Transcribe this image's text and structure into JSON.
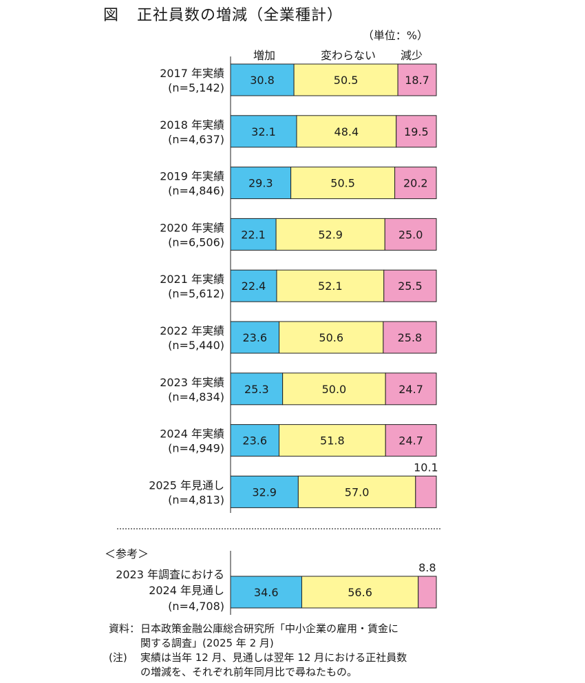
{
  "title": {
    "fig_label": "図",
    "text": "正社員数の増減（全業種計）"
  },
  "unit": "（単位：%）",
  "chart_data": {
    "type": "bar",
    "orientation": "horizontal",
    "stacked": true,
    "percent_stacked": true,
    "legend": [
      "増加",
      "変わらない",
      "減少"
    ],
    "legend_placement": "top",
    "colors": {
      "増加": "#4fc3ee",
      "変わらない": "#fff799",
      "減少": "#f29fc5"
    },
    "categories": [
      {
        "line1": "2017 年実績",
        "line2": "(n=5,142)"
      },
      {
        "line1": "2018 年実績",
        "line2": "(n=4,637)"
      },
      {
        "line1": "2019 年実績",
        "line2": "(n=4,846)"
      },
      {
        "line1": "2020 年実績",
        "line2": "(n=6,506)"
      },
      {
        "line1": "2021 年実績",
        "line2": "(n=5,612)"
      },
      {
        "line1": "2022 年実績",
        "line2": "(n=5,440)"
      },
      {
        "line1": "2023 年実績",
        "line2": "(n=4,834)"
      },
      {
        "line1": "2024 年実績",
        "line2": "(n=4,949)"
      },
      {
        "line1": "2025 年見通し",
        "line2": "(n=4,813)"
      }
    ],
    "series": [
      {
        "name": "増加",
        "values": [
          30.8,
          32.1,
          29.3,
          22.1,
          22.4,
          23.6,
          25.3,
          23.6,
          32.9
        ]
      },
      {
        "name": "変わらない",
        "values": [
          50.5,
          48.4,
          50.5,
          52.9,
          52.1,
          50.6,
          50.0,
          51.8,
          57.0
        ]
      },
      {
        "name": "減少",
        "values": [
          18.7,
          19.5,
          20.2,
          25.0,
          25.5,
          25.8,
          24.7,
          24.7,
          10.1
        ]
      }
    ],
    "value_labels": [
      [
        "30.8",
        "50.5",
        "18.7"
      ],
      [
        "32.1",
        "48.4",
        "19.5"
      ],
      [
        "29.3",
        "50.5",
        "20.2"
      ],
      [
        "22.1",
        "52.9",
        "25.0"
      ],
      [
        "22.4",
        "52.1",
        "25.5"
      ],
      [
        "23.6",
        "50.6",
        "25.8"
      ],
      [
        "25.3",
        "50.0",
        "24.7"
      ],
      [
        "23.6",
        "51.8",
        "24.7"
      ],
      [
        "32.9",
        "57.0",
        "10.1"
      ]
    ],
    "reference": {
      "heading": "＜参考＞",
      "label_lines": [
        "2023 年調査における",
        "2024 年見通し",
        "(n=4,708)"
      ],
      "values": [
        34.6,
        56.6,
        8.8
      ],
      "value_labels": [
        "34.6",
        "56.6",
        "8.8"
      ]
    }
  },
  "notes": {
    "source_head": "資料：",
    "source_line1": "日本政策金融公庫総合研究所「中小企業の雇用・賃金に",
    "source_line2": "関する調査」(2025 年 2 月)",
    "note_head": "(注)",
    "note_line1": "実績は当年 12 月、見通しは翌年 12 月における正社員数",
    "note_line2": "の増減を、それぞれ前年同月比で尋ねたもの。"
  }
}
